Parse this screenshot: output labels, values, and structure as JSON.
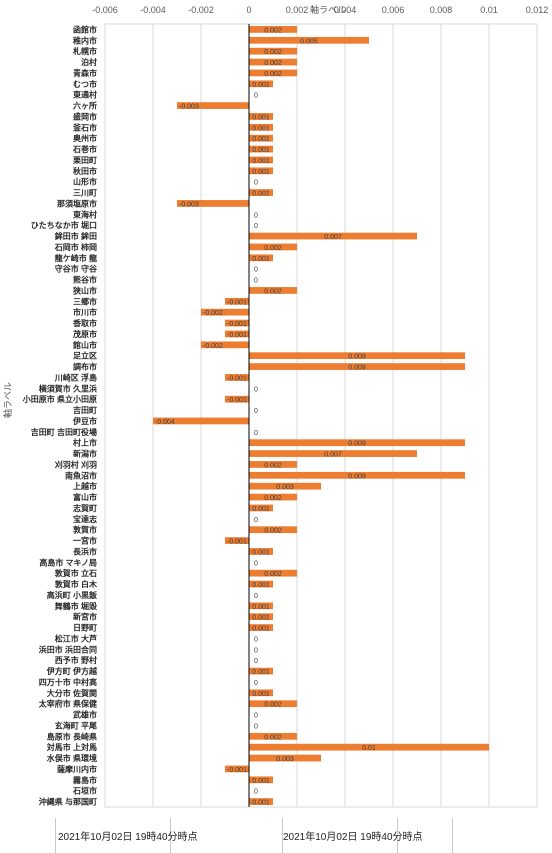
{
  "chart_data": {
    "type": "bar",
    "orientation": "horizontal",
    "xlabel": "軸ラベル",
    "ylabel": "軸ラベル",
    "xlim": [
      -0.006,
      0.012
    ],
    "xticks": [
      "-0.006",
      "-0.004",
      "-0.002",
      "0",
      "0.002",
      "0.004",
      "0.006",
      "0.008",
      "0.01",
      "0.012"
    ],
    "grid": true,
    "bar_color": "#ed7d31",
    "categories": [
      "函館市",
      "稚内市",
      "札幌市",
      "泊村",
      "青森市",
      "むつ市",
      "東通村",
      "六ヶ所",
      "盛岡市",
      "釜石市",
      "奥州市",
      "石巻市",
      "栗田町",
      "秋田市",
      "山形市",
      "三川町",
      "那須塩原市",
      "東海村",
      "ひたちなか市 堀口",
      "鉾田市 鉾田",
      "石岡市 柿岡",
      "龍ケ崎市 龍",
      "守谷市 守谷",
      "熊谷市",
      "狭山市",
      "三郷市",
      "市川市",
      "香取市",
      "茂原市",
      "館山市",
      "足立区",
      "調布市",
      "川崎区 浮島",
      "横須賀市 久里浜",
      "小田原市 県立小田原",
      "吉田町",
      "伊豆市",
      "吉田町 吉田町役場",
      "村上市",
      "新潟市",
      "刈羽村 刈羽",
      "南魚沼市",
      "上越市",
      "富山市",
      "志賀町",
      "宝達志",
      "敦賀市",
      "一宮市",
      "長浜市",
      "高島市 マキノ局",
      "敦賀市 立石",
      "敦賀市 白木",
      "高浜町 小黒飯",
      "舞鶴市 堀毀",
      "新宮市",
      "日野町",
      "松江市 大芦",
      "浜田市 浜田合同",
      "西予市 野村",
      "伊方町 伊方越",
      "四万十市 中村高",
      "大分市 佐賀関",
      "太宰府市 県保健",
      "武雄市",
      "玄海町 平尾",
      "島原市 長崎県",
      "対馬市 上対馬",
      "水俣市 県環境",
      "薩摩川内市",
      "霧島市",
      "石垣市",
      "沖縄県 与那国町"
    ],
    "values": [
      0.002,
      0.005,
      0.002,
      0.002,
      0.002,
      0.001,
      0,
      -0.003,
      0.001,
      0.001,
      0.001,
      0.001,
      0.001,
      0.001,
      0,
      0.001,
      -0.003,
      0,
      0,
      0.007,
      0.002,
      0.001,
      0,
      0,
      0.002,
      -0.001,
      -0.002,
      -0.001,
      -0.001,
      -0.002,
      0.009,
      0.009,
      -0.001,
      0,
      -0.001,
      0,
      -0.004,
      0,
      0.009,
      0.007,
      0.002,
      0.009,
      0.003,
      0.002,
      0.001,
      0,
      0.002,
      -0.001,
      0.001,
      0,
      0.002,
      0.001,
      0,
      0.001,
      0.001,
      0.001,
      0,
      0,
      0,
      0.001,
      0,
      0.001,
      0.002,
      0,
      0,
      0.002,
      0.01,
      0.003,
      -0.001,
      0.001,
      0,
      0.001
    ],
    "data_labels": [
      "0.002",
      "0.005",
      "0.002",
      "0.002",
      "0.002",
      "0.001",
      "0",
      "-0.003",
      "0.001",
      "0.001",
      "0.001",
      "0.001",
      "0.001",
      "0.001",
      "0",
      "0.001",
      "-0.003",
      "0",
      "0",
      "0.007",
      "0.002",
      "0.001",
      "0",
      "0",
      "0.002",
      "-0.001",
      "-0.002",
      "-0.001",
      "-0.001",
      "-0.002",
      "0.009",
      "0.009",
      "-0.001",
      "0",
      "-0.001",
      "0",
      "-0.004",
      "0",
      "0.009",
      "0.007",
      "0.002",
      "0.009",
      "0.003",
      "0.002",
      "0.001",
      "0",
      "0.002",
      "-0.001",
      "0.001",
      "0",
      "0.002",
      "0.001",
      "0",
      "0.001",
      "0.001",
      "0.001",
      "0",
      "0",
      "0",
      "0.001",
      "0",
      "0.001",
      "0.002",
      "0",
      "0",
      "0.002",
      "0.01",
      "0.003",
      "-0.001",
      "0.001",
      "0",
      "0.001"
    ]
  },
  "footer": {
    "captions": [
      "2021年10月02日 19時40分時点",
      "2021年10月02日 19時40分時点"
    ]
  }
}
